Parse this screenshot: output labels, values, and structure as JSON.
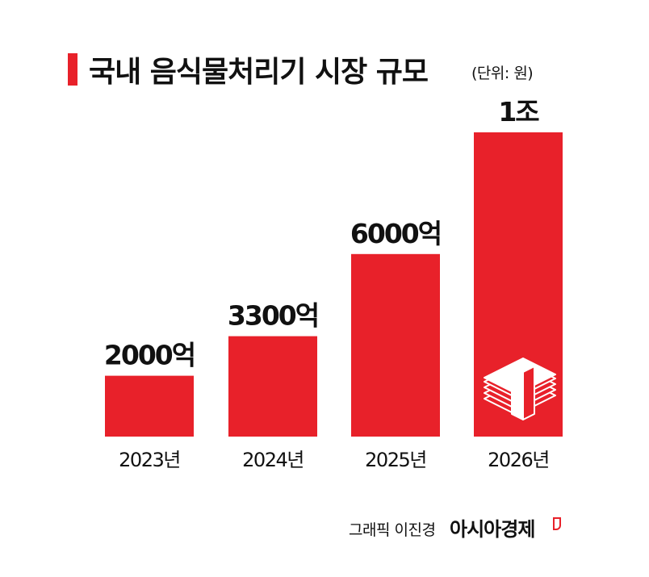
{
  "chart_data": {
    "type": "bar",
    "title": "국내 음식물처리기 시장 규모",
    "unit_label": "(단위: 원)",
    "categories": [
      "2023년",
      "2024년",
      "2025년",
      "2026년"
    ],
    "values": [
      2000,
      3300,
      6000,
      10000
    ],
    "value_unit": "억원",
    "data_labels": [
      "2000억",
      "3300억",
      "6000억",
      "1조"
    ],
    "ylim": [
      0,
      10000
    ],
    "grid": false,
    "legend": "none",
    "bar_color": "#e8212a"
  },
  "footer": {
    "credit": "그래픽 이진경",
    "brand": "아시아경제"
  },
  "icons": {
    "last_bar": "money-stack-icon"
  }
}
